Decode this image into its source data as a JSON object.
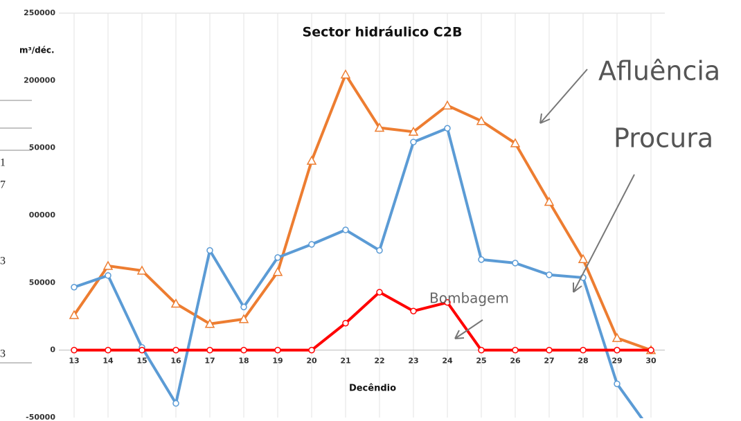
{
  "chart_data": {
    "type": "line",
    "title": "Sector hidráulico C2B",
    "y_label": "m³/déc.",
    "x_label": "Decêndio",
    "categories": [
      "13",
      "14",
      "15",
      "16",
      "17",
      "18",
      "19",
      "20",
      "21",
      "22",
      "23",
      "24",
      "25",
      "26",
      "27",
      "28",
      "29",
      "30"
    ],
    "series": [
      {
        "name": "Afluência",
        "color": "#ed7d31",
        "marker": "triangle",
        "values": [
          26000,
          62500,
          59000,
          34500,
          19500,
          23000,
          58000,
          140500,
          204500,
          165000,
          162000,
          181500,
          170000,
          153500,
          110000,
          67500,
          9000,
          0
        ]
      },
      {
        "name": "Procura",
        "color": "#5b9bd5",
        "marker": "circle",
        "values": [
          46700,
          55400,
          2000,
          -39500,
          74000,
          32000,
          68700,
          78500,
          89200,
          74000,
          154400,
          164600,
          67200,
          64600,
          55900,
          53800,
          -25000,
          -60000
        ]
      },
      {
        "name": "Bombagem",
        "color": "#ff0000",
        "marker": "circle",
        "values": [
          0,
          0,
          0,
          0,
          0,
          0,
          0,
          0,
          20000,
          43000,
          29000,
          35400,
          0,
          0,
          0,
          0,
          0,
          0
        ]
      }
    ],
    "ylim": [
      -50000,
      250000
    ],
    "yticks": [
      -50000,
      0,
      50000,
      {
        "value": 100000,
        "label": "00000"
      },
      {
        "value": 150000,
        "label": "50000"
      },
      200000,
      250000
    ],
    "grid": "x",
    "fragments": [
      "1",
      "7",
      "3",
      "3"
    ]
  }
}
